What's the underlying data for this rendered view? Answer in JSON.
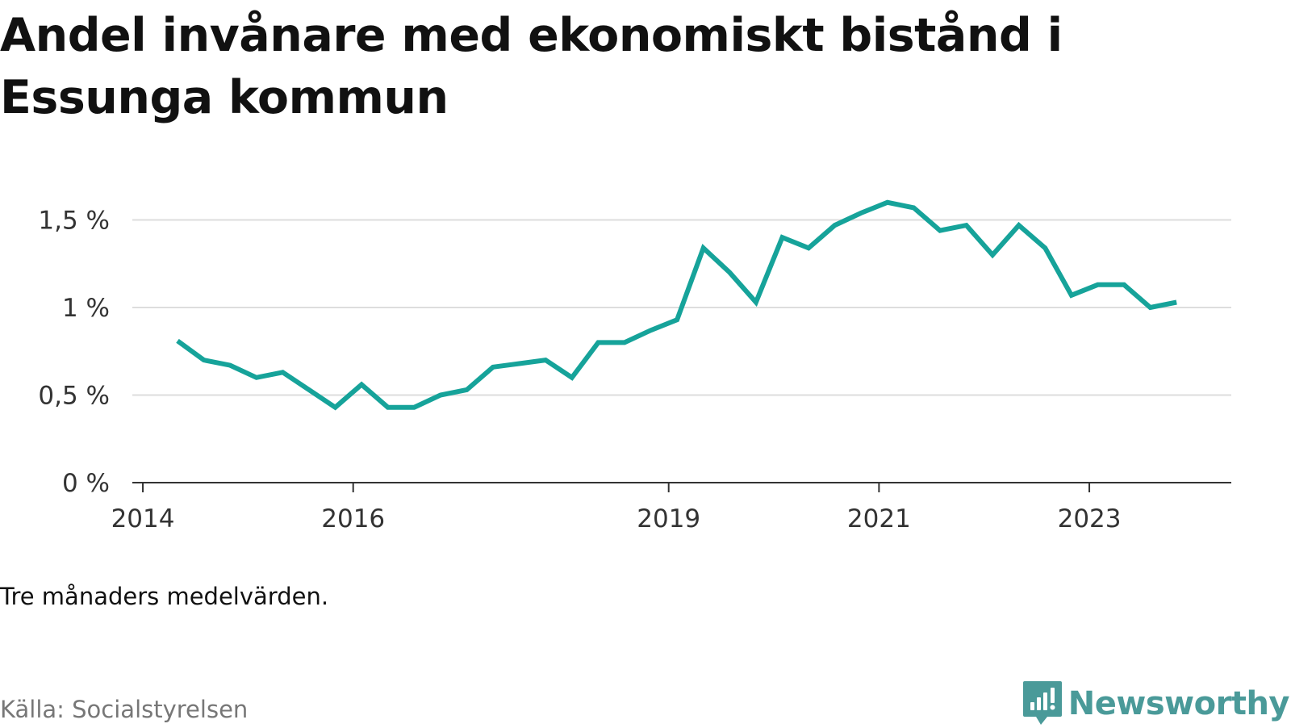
{
  "header": {
    "title": "Andel invånare med ekonomiskt bistånd i Essunga kommun"
  },
  "footer": {
    "note": "Tre månaders medelvärden.",
    "source": "Källa: Socialstyrelsen",
    "brand": "Newsworthy"
  },
  "colors": {
    "line": "#16a39a",
    "grid": "#dddddd",
    "axis": "#333333",
    "brand": "#4a9a99"
  },
  "icons": {
    "brand_logo": "newsworthy-logo-icon"
  },
  "chart_data": {
    "type": "line",
    "title": "Andel invånare med ekonomiskt bistånd i Essunga kommun",
    "xlabel": "",
    "ylabel": "",
    "x_ticks": [
      {
        "value": 2014.0,
        "label": "2014"
      },
      {
        "value": 2016.0,
        "label": "2016"
      },
      {
        "value": 2019.0,
        "label": "2019"
      },
      {
        "value": 2021.0,
        "label": "2021"
      },
      {
        "value": 2023.0,
        "label": "2023"
      }
    ],
    "y_ticks": [
      {
        "value": 0,
        "label": "0 %"
      },
      {
        "value": 0.5,
        "label": "0,5 %"
      },
      {
        "value": 1.0,
        "label": "1 %"
      },
      {
        "value": 1.5,
        "label": "1,5 %"
      }
    ],
    "xlim": [
      2013.9,
      2024.35
    ],
    "ylim": [
      0,
      1.65
    ],
    "grid": true,
    "series": [
      {
        "points": [
          [
            2014.33,
            0.81
          ],
          [
            2014.58,
            0.7
          ],
          [
            2014.83,
            0.67
          ],
          [
            2015.08,
            0.6
          ],
          [
            2015.33,
            0.63
          ],
          [
            2015.58,
            0.53
          ],
          [
            2015.83,
            0.43
          ],
          [
            2016.08,
            0.56
          ],
          [
            2016.33,
            0.43
          ],
          [
            2016.58,
            0.43
          ],
          [
            2016.83,
            0.5
          ],
          [
            2017.08,
            0.53
          ],
          [
            2017.33,
            0.66
          ],
          [
            2017.58,
            0.68
          ],
          [
            2017.83,
            0.7
          ],
          [
            2018.08,
            0.6
          ],
          [
            2018.33,
            0.8
          ],
          [
            2018.58,
            0.8
          ],
          [
            2018.83,
            0.87
          ],
          [
            2019.08,
            0.93
          ],
          [
            2019.33,
            1.34
          ],
          [
            2019.58,
            1.2
          ],
          [
            2019.83,
            1.03
          ],
          [
            2020.08,
            1.4
          ],
          [
            2020.33,
            1.34
          ],
          [
            2020.58,
            1.47
          ],
          [
            2020.83,
            1.54
          ],
          [
            2021.08,
            1.6
          ],
          [
            2021.33,
            1.57
          ],
          [
            2021.58,
            1.44
          ],
          [
            2021.83,
            1.47
          ],
          [
            2022.08,
            1.3
          ],
          [
            2022.33,
            1.47
          ],
          [
            2022.58,
            1.34
          ],
          [
            2022.83,
            1.07
          ],
          [
            2023.08,
            1.13
          ],
          [
            2023.33,
            1.13
          ],
          [
            2023.58,
            1.0
          ],
          [
            2023.83,
            1.03
          ]
        ]
      }
    ]
  }
}
